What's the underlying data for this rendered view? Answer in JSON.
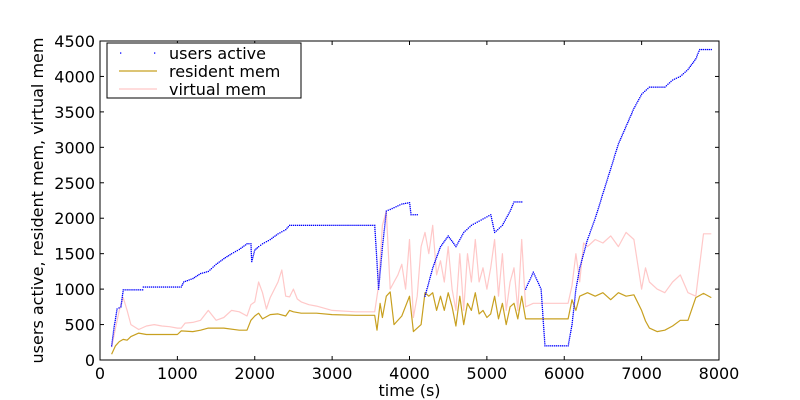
{
  "chart_data": {
    "type": "line",
    "title": "",
    "xlabel": "time (s)",
    "ylabel": "users active, resident mem, virtual mem",
    "xlim": [
      0,
      8000
    ],
    "ylim": [
      0,
      4500
    ],
    "x_ticks": [
      0,
      1000,
      2000,
      3000,
      4000,
      5000,
      6000,
      7000,
      8000
    ],
    "y_ticks": [
      0,
      500,
      1000,
      1500,
      2000,
      2500,
      3000,
      3500,
      4000,
      4500
    ],
    "grid": false,
    "legend_position": "top-left",
    "series": [
      {
        "name": "users active",
        "style": "dots",
        "color": "#0000ff",
        "points": [
          [
            150,
            200
          ],
          [
            180,
            450
          ],
          [
            220,
            720
          ],
          [
            270,
            750
          ],
          [
            300,
            990
          ],
          [
            550,
            990
          ],
          [
            560,
            1030
          ],
          [
            1050,
            1030
          ],
          [
            1080,
            1100
          ],
          [
            1200,
            1150
          ],
          [
            1300,
            1220
          ],
          [
            1400,
            1250
          ],
          [
            1500,
            1350
          ],
          [
            1600,
            1430
          ],
          [
            1700,
            1500
          ],
          [
            1800,
            1560
          ],
          [
            1900,
            1640
          ],
          [
            1950,
            1640
          ],
          [
            1960,
            1390
          ],
          [
            2000,
            1550
          ],
          [
            2050,
            1600
          ],
          [
            2100,
            1640
          ],
          [
            2200,
            1700
          ],
          [
            2300,
            1780
          ],
          [
            2400,
            1840
          ],
          [
            2450,
            1900
          ],
          [
            3550,
            1900
          ],
          [
            3600,
            1000
          ],
          [
            3650,
            1600
          ],
          [
            3700,
            2100
          ],
          [
            3800,
            2150
          ],
          [
            3900,
            2200
          ],
          [
            4000,
            2220
          ],
          [
            4020,
            2050
          ],
          [
            4100,
            2050
          ],
          [
            4200,
            900
          ],
          [
            4300,
            1300
          ],
          [
            4350,
            1450
          ],
          [
            4400,
            1600
          ],
          [
            4500,
            1750
          ],
          [
            4600,
            1600
          ],
          [
            4700,
            1800
          ],
          [
            4800,
            1900
          ],
          [
            4900,
            1960
          ],
          [
            5000,
            2020
          ],
          [
            5050,
            2050
          ],
          [
            5100,
            1800
          ],
          [
            5200,
            1900
          ],
          [
            5300,
            2100
          ],
          [
            5350,
            2230
          ],
          [
            5450,
            2230
          ],
          [
            5500,
            1000
          ],
          [
            5600,
            1240
          ],
          [
            5700,
            1000
          ],
          [
            5750,
            200
          ],
          [
            6050,
            200
          ],
          [
            6100,
            500
          ],
          [
            6150,
            1000
          ],
          [
            6200,
            1300
          ],
          [
            6300,
            1700
          ],
          [
            6400,
            2000
          ],
          [
            6500,
            2350
          ],
          [
            6600,
            2700
          ],
          [
            6700,
            3050
          ],
          [
            6800,
            3300
          ],
          [
            6900,
            3550
          ],
          [
            7000,
            3750
          ],
          [
            7100,
            3850
          ],
          [
            7300,
            3850
          ],
          [
            7400,
            3950
          ],
          [
            7500,
            4000
          ],
          [
            7600,
            4100
          ],
          [
            7700,
            4250
          ],
          [
            7750,
            4380
          ],
          [
            7900,
            4380
          ]
        ]
      },
      {
        "name": "resident mem",
        "style": "line",
        "color": "#c8a020",
        "points": [
          [
            150,
            80
          ],
          [
            200,
            200
          ],
          [
            250,
            260
          ],
          [
            300,
            290
          ],
          [
            350,
            280
          ],
          [
            400,
            330
          ],
          [
            500,
            380
          ],
          [
            600,
            360
          ],
          [
            800,
            360
          ],
          [
            1000,
            360
          ],
          [
            1050,
            410
          ],
          [
            1200,
            400
          ],
          [
            1300,
            420
          ],
          [
            1400,
            450
          ],
          [
            1600,
            450
          ],
          [
            1800,
            420
          ],
          [
            1900,
            420
          ],
          [
            1950,
            560
          ],
          [
            2000,
            620
          ],
          [
            2050,
            660
          ],
          [
            2100,
            580
          ],
          [
            2200,
            640
          ],
          [
            2300,
            650
          ],
          [
            2400,
            620
          ],
          [
            2450,
            700
          ],
          [
            2500,
            680
          ],
          [
            2600,
            660
          ],
          [
            2800,
            660
          ],
          [
            3000,
            640
          ],
          [
            3300,
            630
          ],
          [
            3550,
            630
          ],
          [
            3580,
            420
          ],
          [
            3620,
            800
          ],
          [
            3650,
            600
          ],
          [
            3700,
            900
          ],
          [
            3750,
            960
          ],
          [
            3800,
            500
          ],
          [
            3900,
            620
          ],
          [
            4000,
            900
          ],
          [
            4050,
            400
          ],
          [
            4150,
            500
          ],
          [
            4200,
            950
          ],
          [
            4250,
            900
          ],
          [
            4300,
            950
          ],
          [
            4350,
            700
          ],
          [
            4400,
            900
          ],
          [
            4450,
            700
          ],
          [
            4500,
            950
          ],
          [
            4550,
            750
          ],
          [
            4600,
            480
          ],
          [
            4650,
            900
          ],
          [
            4700,
            500
          ],
          [
            4750,
            800
          ],
          [
            4800,
            700
          ],
          [
            4850,
            950
          ],
          [
            4900,
            650
          ],
          [
            4950,
            700
          ],
          [
            5000,
            600
          ],
          [
            5050,
            650
          ],
          [
            5100,
            900
          ],
          [
            5150,
            580
          ],
          [
            5200,
            800
          ],
          [
            5250,
            500
          ],
          [
            5300,
            750
          ],
          [
            5350,
            800
          ],
          [
            5400,
            580
          ],
          [
            5450,
            900
          ],
          [
            5500,
            580
          ],
          [
            5600,
            580
          ],
          [
            5700,
            580
          ],
          [
            5800,
            580
          ],
          [
            6050,
            580
          ],
          [
            6100,
            850
          ],
          [
            6150,
            700
          ],
          [
            6200,
            900
          ],
          [
            6300,
            950
          ],
          [
            6400,
            900
          ],
          [
            6500,
            950
          ],
          [
            6600,
            850
          ],
          [
            6700,
            950
          ],
          [
            6800,
            900
          ],
          [
            6900,
            920
          ],
          [
            7000,
            700
          ],
          [
            7050,
            550
          ],
          [
            7100,
            450
          ],
          [
            7200,
            400
          ],
          [
            7300,
            420
          ],
          [
            7400,
            480
          ],
          [
            7500,
            560
          ],
          [
            7600,
            560
          ],
          [
            7700,
            880
          ],
          [
            7800,
            940
          ],
          [
            7900,
            880
          ]
        ]
      },
      {
        "name": "virtual mem",
        "style": "line",
        "color": "#ffc8c8",
        "points": [
          [
            150,
            180
          ],
          [
            200,
            450
          ],
          [
            250,
            700
          ],
          [
            300,
            880
          ],
          [
            350,
            700
          ],
          [
            400,
            500
          ],
          [
            500,
            430
          ],
          [
            600,
            480
          ],
          [
            700,
            500
          ],
          [
            800,
            480
          ],
          [
            900,
            470
          ],
          [
            1000,
            450
          ],
          [
            1050,
            450
          ],
          [
            1100,
            520
          ],
          [
            1200,
            530
          ],
          [
            1300,
            560
          ],
          [
            1400,
            700
          ],
          [
            1500,
            560
          ],
          [
            1600,
            600
          ],
          [
            1700,
            700
          ],
          [
            1800,
            680
          ],
          [
            1900,
            620
          ],
          [
            1950,
            780
          ],
          [
            2000,
            820
          ],
          [
            2050,
            1100
          ],
          [
            2100,
            950
          ],
          [
            2150,
            720
          ],
          [
            2200,
            880
          ],
          [
            2300,
            1100
          ],
          [
            2350,
            1270
          ],
          [
            2400,
            900
          ],
          [
            2450,
            890
          ],
          [
            2500,
            1000
          ],
          [
            2550,
            860
          ],
          [
            2600,
            820
          ],
          [
            2700,
            780
          ],
          [
            2800,
            760
          ],
          [
            3000,
            700
          ],
          [
            3300,
            680
          ],
          [
            3550,
            680
          ],
          [
            3600,
            1050
          ],
          [
            3650,
            1900
          ],
          [
            3700,
            2100
          ],
          [
            3750,
            1000
          ],
          [
            3800,
            1100
          ],
          [
            3850,
            1200
          ],
          [
            3900,
            1350
          ],
          [
            3950,
            1000
          ],
          [
            4000,
            1700
          ],
          [
            4050,
            600
          ],
          [
            4100,
            900
          ],
          [
            4150,
            1600
          ],
          [
            4200,
            1800
          ],
          [
            4250,
            1500
          ],
          [
            4300,
            1900
          ],
          [
            4350,
            1200
          ],
          [
            4400,
            1400
          ],
          [
            4450,
            1100
          ],
          [
            4500,
            1600
          ],
          [
            4550,
            1000
          ],
          [
            4600,
            700
          ],
          [
            4650,
            1500
          ],
          [
            4700,
            700
          ],
          [
            4750,
            1500
          ],
          [
            4800,
            1100
          ],
          [
            4850,
            1700
          ],
          [
            4900,
            1100
          ],
          [
            4950,
            1300
          ],
          [
            5000,
            1000
          ],
          [
            5050,
            1300
          ],
          [
            5100,
            1700
          ],
          [
            5150,
            900
          ],
          [
            5200,
            1500
          ],
          [
            5250,
            700
          ],
          [
            5300,
            1100
          ],
          [
            5350,
            1300
          ],
          [
            5400,
            700
          ],
          [
            5450,
            1700
          ],
          [
            5500,
            750
          ],
          [
            5600,
            800
          ],
          [
            5800,
            800
          ],
          [
            6050,
            800
          ],
          [
            6100,
            1050
          ],
          [
            6150,
            1500
          ],
          [
            6200,
            1100
          ],
          [
            6250,
            1650
          ],
          [
            6300,
            1600
          ],
          [
            6400,
            1700
          ],
          [
            6500,
            1650
          ],
          [
            6600,
            1750
          ],
          [
            6700,
            1600
          ],
          [
            6800,
            1800
          ],
          [
            6900,
            1700
          ],
          [
            7000,
            1000
          ],
          [
            7050,
            1300
          ],
          [
            7100,
            1100
          ],
          [
            7200,
            1000
          ],
          [
            7300,
            950
          ],
          [
            7400,
            1100
          ],
          [
            7500,
            1200
          ],
          [
            7600,
            950
          ],
          [
            7700,
            900
          ],
          [
            7800,
            1780
          ],
          [
            7900,
            1780
          ]
        ]
      }
    ]
  }
}
